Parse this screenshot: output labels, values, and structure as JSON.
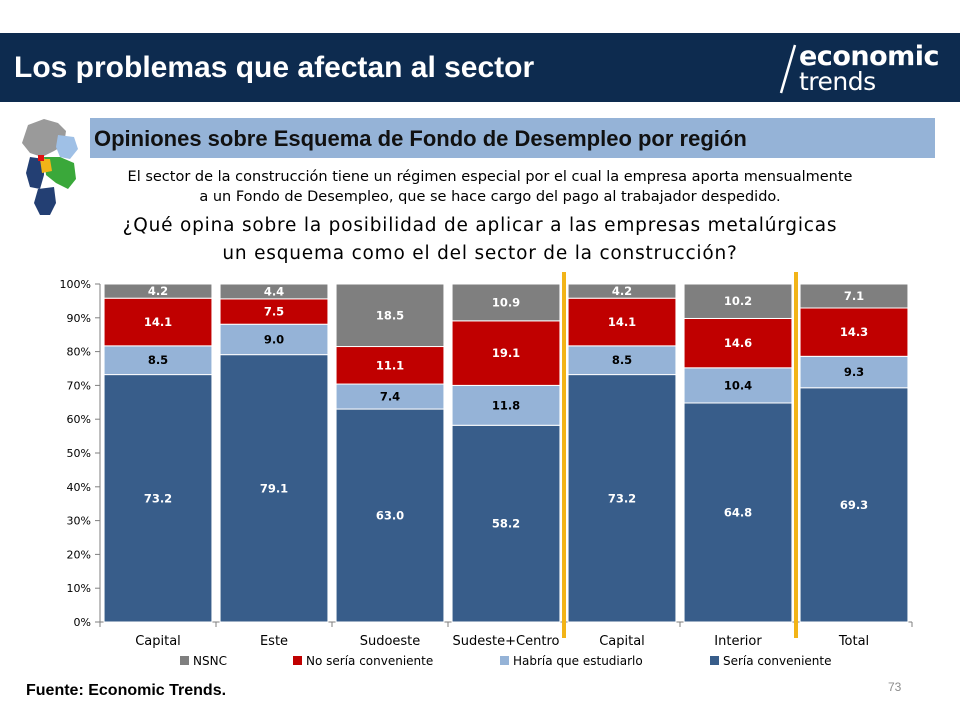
{
  "header": {
    "title": "Los problemas que afectan al sector",
    "logo_top": "economic",
    "logo_bottom": "trends"
  },
  "subtitle": "Opiniones sobre Esquema de Fondo de Desempleo por región",
  "description": [
    "El sector de la construcción tiene un régimen especial por el cual la empresa aporta mensualmente",
    "a un Fondo de Desempleo, que se hace cargo del pago al trabajador despedido."
  ],
  "question": [
    "¿Qué opina sobre la posibilidad de aplicar a las empresas metalúrgicas",
    "un esquema como el del sector de la construcción?"
  ],
  "source": "Fuente: Economic Trends.",
  "page_number": "73",
  "colors": {
    "header_bg": "#0d2b4f",
    "subtitle_bg": "#95b3d7",
    "divider": "#f2b418"
  },
  "chart_data": {
    "type": "bar",
    "stacked": true,
    "normalized": true,
    "categories": [
      "Capital",
      "Este",
      "Sudoeste",
      "Sudeste+Centro",
      "Capital",
      "Interior",
      "Total"
    ],
    "ylim": [
      0,
      100
    ],
    "yticks": [
      "0%",
      "10%",
      "20%",
      "30%",
      "40%",
      "50%",
      "60%",
      "70%",
      "80%",
      "90%",
      "100%"
    ],
    "grid": false,
    "legend_position": "bottom",
    "series": [
      {
        "name": "Sería conveniente",
        "color": "#385d8a",
        "label_color": "#ffffff",
        "values": [
          73.2,
          79.1,
          63.0,
          58.2,
          73.2,
          64.8,
          69.3
        ],
        "labels": [
          "73.2",
          "79.1",
          "63.0",
          "58.2",
          "73.2",
          "64.8",
          "69.3"
        ]
      },
      {
        "name": "Habría que estudiarlo",
        "color": "#95b3d7",
        "label_color": "#000000",
        "values": [
          8.5,
          9.0,
          7.4,
          11.8,
          8.5,
          10.4,
          9.3
        ],
        "labels": [
          "8.5",
          "9.0",
          "7.4",
          "11.8",
          "8.5",
          "10.4",
          "9.3"
        ]
      },
      {
        "name": "No sería conveniente",
        "color": "#c00000",
        "label_color": "#ffffff",
        "values": [
          14.1,
          7.5,
          11.1,
          19.1,
          14.1,
          14.6,
          14.3
        ],
        "labels": [
          "14.1",
          "7.5",
          "11.1",
          "19.1",
          "14.1",
          "14.6",
          "14.3"
        ]
      },
      {
        "name": "NSNC",
        "color": "#7f7f7f",
        "label_color": "#ffffff",
        "values": [
          4.2,
          4.4,
          18.5,
          10.9,
          4.2,
          10.2,
          7.1
        ],
        "labels": [
          "4.2",
          "4.4",
          "18.5",
          "10.9",
          "4.2",
          "10.2",
          "7.1"
        ]
      }
    ],
    "legend_order": [
      "NSNC",
      "No sería conveniente",
      "Habría que estudiarlo",
      "Sería conveniente"
    ],
    "dividers_after_category": [
      3,
      5
    ]
  }
}
